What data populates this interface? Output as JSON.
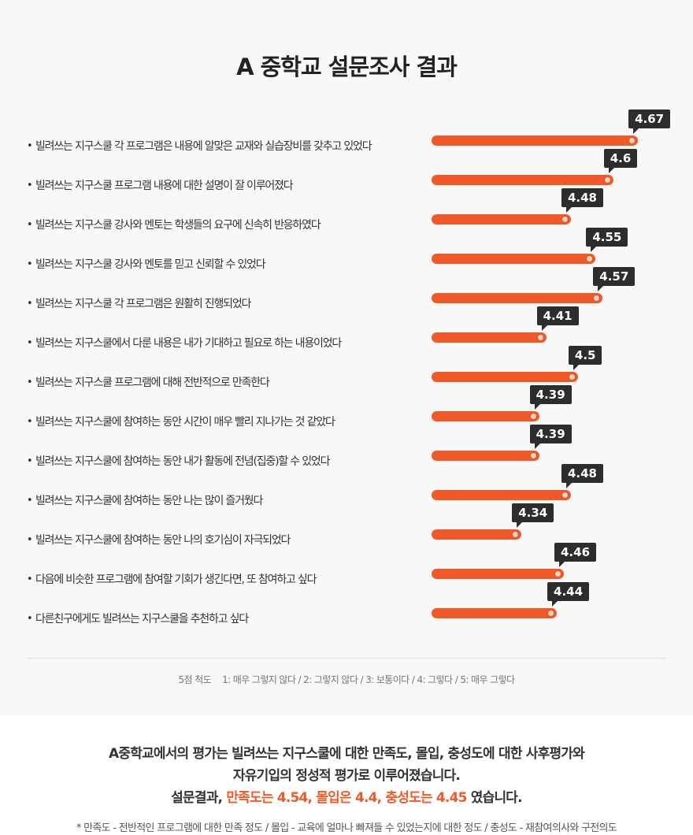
{
  "chart_data": {
    "type": "bar",
    "orientation": "horizontal",
    "title": "A 중학교 설문조사 결과",
    "xlim": [
      0,
      5
    ],
    "categories": [
      "빌려쓰는 지구스쿨 각 프로그램은 내용에 알맞은 교재와 실습장비를 갖추고 있었다",
      "빌려쓰는 지구스쿨 프로그램 내용에 대한 설명이 잘 이루어졌다",
      "빌려쓰는 지구스쿨 강사와 멘토는 학생들의 요구에 신속히 반응하였다",
      "빌려쓰는 지구스쿨 강사와 멘토를 믿고 신뢰할 수 있었다",
      "빌려쓰는 지구스쿨 각 프로그램은 원활히 진행되었다",
      "빌려쓰는 지구스쿨에서 다룬 내용은 내가 기대하고 필요로 하는 내용이었다",
      "빌려쓰는 지구스쿨 프로그램에 대해 전반적으로 만족한다",
      "빌려쓰는 지구스쿨에 참여하는 동안 시간이 매우 빨리 지나가는 것 같았다",
      "빌려쓰는 지구스쿨에 참여하는 동안 내가 활동에 전념(집중)할 수 있었다",
      "빌려쓰는 지구스쿨에 참여하는 동안 나는 많이 즐거웠다",
      "빌려쓰는 지구스쿨에 참여하는 동안 나의 호기심이 자극되었다",
      "다음에 비슷한 프로그램에 참여할 기회가 생긴다면, 또 참여하고 싶다",
      "다른친구에게도 빌려쓰는 지구스쿨을 추천하고 싶다"
    ],
    "values": [
      4.67,
      4.6,
      4.48,
      4.55,
      4.57,
      4.41,
      4.5,
      4.39,
      4.39,
      4.48,
      4.34,
      4.46,
      4.44
    ],
    "value_labels": [
      "4.67",
      "4.6",
      "4.48",
      "4.55",
      "4.57",
      "4.41",
      "4.5",
      "4.39",
      "4.39",
      "4.48",
      "4.34",
      "4.46",
      "4.44"
    ],
    "bar_color": "#f05a28",
    "label_bg_color": "#2d2d2d"
  },
  "bullet": "•",
  "scale_note": {
    "title": "5점 척도",
    "text": "1:  매우 그렇지 않다 / 2: 그렇지 않다 / 3: 보통이다 / 4: 그렇다 / 5: 매우 그렇다"
  },
  "summary": {
    "line1": "A중학교에서의 평가는 빌려쓰는 지구스쿨에 대한 만족도, 몰입, 충성도에 대한 사후평가와",
    "line2": "자유기입의 정성적 평가로 이루어졌습니다.",
    "line3_prefix": "설문결과, ",
    "line3_highlight": "만족도는 4.54, 몰입은 4.4, 충성도는 4.45",
    "line3_suffix": " 였습니다."
  },
  "footnote": "* 만족도  -  전반적인 프로그램에 대한 만족 정도 / 몰입  -  교육에 얼마나 빠져들 수 있었는지에 대한 정도 / 충성도  -  재참여의사와 구전의도"
}
